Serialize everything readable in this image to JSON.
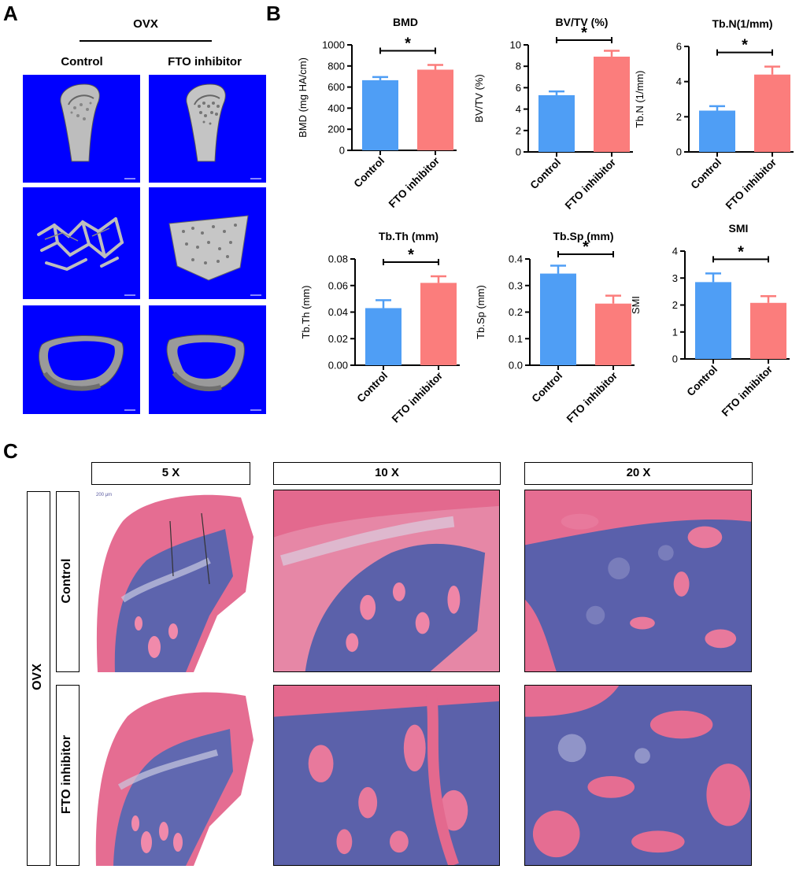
{
  "panels": {
    "a": "A",
    "b": "B",
    "c": "C"
  },
  "panel_a": {
    "group_label": "OVX",
    "col_headers": [
      "Control",
      "FTO inhibitor"
    ]
  },
  "colors": {
    "control": "#4f9ef5",
    "fto": "#fb7d7c",
    "tile_bg": "#0000ff",
    "he_pink": "#e36b8e",
    "he_purple": "#5b5fa8"
  },
  "chart_data": [
    {
      "type": "bar",
      "title": "BMD",
      "ylabel": "BMD (mg HA/cm)",
      "categories": [
        "Control",
        "FTO inhibitor"
      ],
      "values": [
        665,
        765
      ],
      "errors": [
        30,
        45
      ],
      "ylim": [
        0,
        1000
      ],
      "yticks": [
        0,
        200,
        400,
        600,
        800,
        1000
      ],
      "ytick_labels": [
        "0",
        "200",
        "400",
        "600",
        "800",
        "1000"
      ],
      "significance": "*"
    },
    {
      "type": "bar",
      "title": "BV/TV (%)",
      "ylabel": "BV/TV (%)",
      "categories": [
        "Control",
        "FTO inhibitor"
      ],
      "values": [
        5.3,
        8.9
      ],
      "errors": [
        0.35,
        0.55
      ],
      "ylim": [
        0,
        10
      ],
      "yticks": [
        0,
        2,
        4,
        6,
        8,
        10
      ],
      "ytick_labels": [
        "0",
        "2",
        "4",
        "6",
        "8",
        "10"
      ],
      "significance": "*"
    },
    {
      "type": "bar",
      "title": "Tb.N(1/mm)",
      "ylabel": "Tb.N (1/mm)",
      "categories": [
        "Control",
        "FTO inhibitor"
      ],
      "values": [
        2.35,
        4.4
      ],
      "errors": [
        0.25,
        0.45
      ],
      "ylim": [
        0,
        6
      ],
      "yticks": [
        0,
        2,
        4,
        6
      ],
      "ytick_labels": [
        "0",
        "2",
        "4",
        "6"
      ],
      "significance": "*"
    },
    {
      "type": "bar",
      "title": "Tb.Th (mm)",
      "ylabel": "Tb.Th (mm)",
      "categories": [
        "Control",
        "FTO inhibitor"
      ],
      "values": [
        0.043,
        0.062
      ],
      "errors": [
        0.006,
        0.005
      ],
      "ylim": [
        0,
        0.08
      ],
      "yticks": [
        0,
        0.02,
        0.04,
        0.06,
        0.08
      ],
      "ytick_labels": [
        "0.00",
        "0.02",
        "0.04",
        "0.06",
        "0.08"
      ],
      "significance": "*"
    },
    {
      "type": "bar",
      "title": "Tb.Sp (mm)",
      "ylabel": "Tb.Sp (mm)",
      "categories": [
        "Control",
        "FTO inhibitor"
      ],
      "values": [
        0.345,
        0.232
      ],
      "errors": [
        0.03,
        0.03
      ],
      "ylim": [
        0,
        0.4
      ],
      "yticks": [
        0,
        0.1,
        0.2,
        0.3,
        0.4
      ],
      "ytick_labels": [
        "0.0",
        "0.1",
        "0.2",
        "0.3",
        "0.4"
      ],
      "significance": "*"
    },
    {
      "type": "bar",
      "title": "SMI",
      "ylabel": "SMI",
      "categories": [
        "Control",
        "FTO inhibitor"
      ],
      "values": [
        2.85,
        2.08
      ],
      "errors": [
        0.32,
        0.25
      ],
      "ylim": [
        0,
        4
      ],
      "yticks": [
        0,
        1,
        2,
        3,
        4
      ],
      "ytick_labels": [
        "0",
        "1",
        "2",
        "3",
        "4"
      ],
      "significance": "*"
    }
  ],
  "panel_c": {
    "magnifications": [
      "5 X",
      "10 X",
      "20 X"
    ],
    "group_label": "OVX",
    "row_labels": [
      "Control",
      "FTO inhibitor"
    ],
    "scale_text": "200 μm"
  }
}
